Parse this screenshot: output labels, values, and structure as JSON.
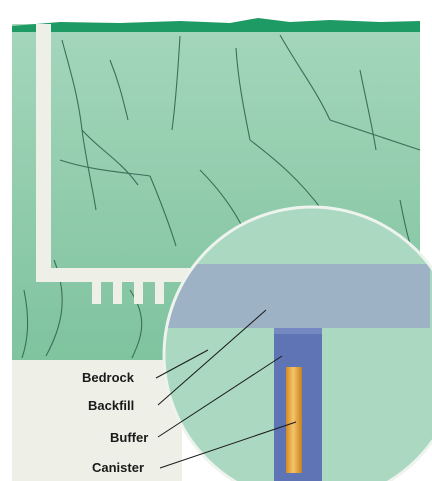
{
  "labels": {
    "bedrock": "Bedrock",
    "backfill": "Backfill",
    "buffer": "Buffer",
    "canister": "Canister"
  },
  "colors": {
    "rock_top": "#a4d6bb",
    "rock_bottom": "#7fc39f",
    "ground_surface": "#1e9a64",
    "tunnel": "#eef0e8",
    "magnifier": "#aad8c0",
    "backfill": "#9db2c4",
    "buffer": "#5f74b5",
    "canister_light": "#f3c46a",
    "canister_dark": "#d58b1f",
    "crack": "#3c6f58"
  }
}
